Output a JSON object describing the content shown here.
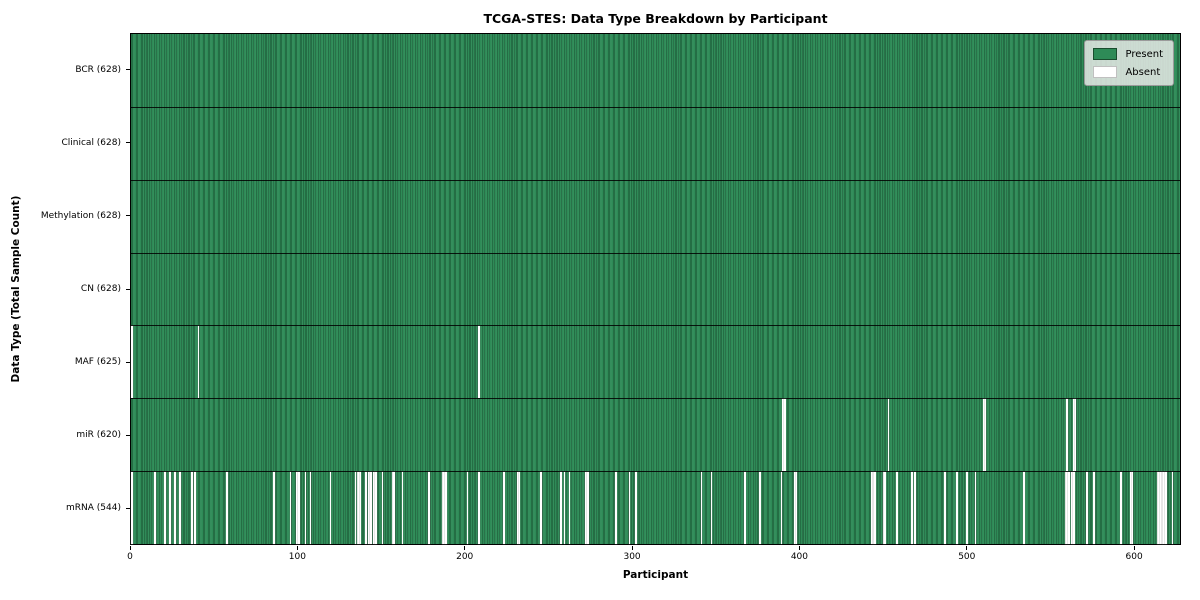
{
  "chart_data": {
    "type": "heatmap",
    "title": "TCGA-STES: Data Type Breakdown by Participant",
    "xlabel": "Participant",
    "ylabel": "Data Type (Total Sample Count)",
    "x_ticks": [
      0,
      100,
      200,
      300,
      400,
      500,
      600
    ],
    "xlim": [
      0,
      628
    ],
    "n_participants": 628,
    "grid": "row-separators",
    "legend_position": "upper-right",
    "legend": {
      "present_label": "Present",
      "absent_label": "Absent"
    },
    "colors": {
      "present": "#2e8b57",
      "absent": "#ffffff",
      "bar_edge": "#123a24"
    },
    "rows": [
      {
        "label": "BCR (628)",
        "data_type": "BCR",
        "present_count": 628,
        "absent_participants": []
      },
      {
        "label": "Clinical (628)",
        "data_type": "Clinical",
        "present_count": 628,
        "absent_participants": []
      },
      {
        "label": "Methylation (628)",
        "data_type": "Methylation",
        "present_count": 628,
        "absent_participants": []
      },
      {
        "label": "CN (628)",
        "data_type": "CN",
        "present_count": 628,
        "absent_participants": []
      },
      {
        "label": "MAF (625)",
        "data_type": "MAF",
        "present_count": 625,
        "absent_participants": [
          0,
          40,
          208
        ]
      },
      {
        "label": "miR (620)",
        "data_type": "miR",
        "present_count": 620,
        "absent_participants": [
          390,
          391,
          453,
          510,
          511,
          560,
          564,
          565
        ]
      },
      {
        "label": "mRNA (544)",
        "data_type": "mRNA",
        "present_count": 544,
        "absent_participants": [
          0,
          14,
          20,
          23,
          26,
          29,
          36,
          38,
          57,
          85,
          95,
          99,
          100,
          104,
          107,
          119,
          134,
          135,
          136,
          137,
          140,
          142,
          143,
          145,
          146,
          150,
          156,
          157,
          162,
          178,
          186,
          187,
          188,
          201,
          208,
          223,
          231,
          232,
          245,
          257,
          259,
          262,
          272,
          273,
          290,
          298,
          302,
          341,
          347,
          367,
          376,
          389,
          397,
          398,
          443,
          444,
          445,
          450,
          451,
          458,
          467,
          469,
          487,
          494,
          500,
          505,
          534,
          559,
          560,
          561,
          563,
          564,
          572,
          576,
          592,
          598,
          599,
          614,
          615,
          616,
          617,
          618,
          619,
          623
        ]
      }
    ]
  }
}
